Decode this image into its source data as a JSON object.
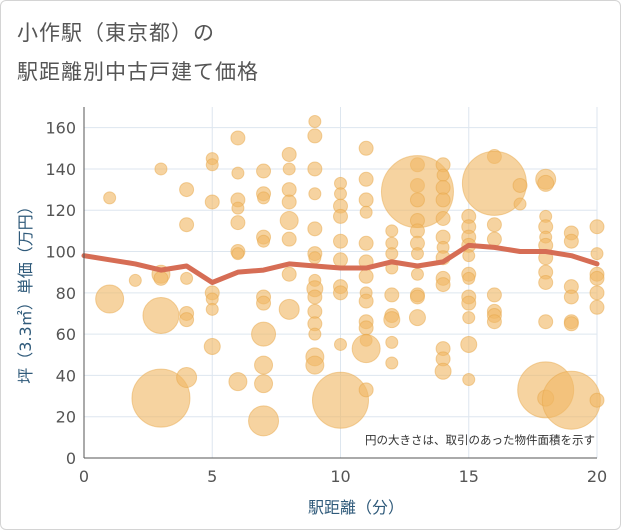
{
  "title": {
    "line1": "小作駅（東京都）の",
    "line2": "駅距離別中古戸建て価格"
  },
  "note": "円の大きさは、取引のあった物件面積を示す",
  "colors": {
    "bubble": "#f0b866",
    "bubble_stroke": "#e7a84a",
    "line": "#d66d55",
    "grid": "#dde6ef",
    "axis": "#555555"
  },
  "chart_data": {
    "type": "scatter",
    "xlabel": "駅距離（分）",
    "ylabel": "坪（3.3㎡）単価（万円）",
    "xlim": [
      0,
      20
    ],
    "ylim": [
      0,
      170
    ],
    "xticks": [
      0,
      5,
      10,
      15,
      20
    ],
    "yticks": [
      0,
      20,
      40,
      60,
      80,
      100,
      120,
      140,
      160
    ],
    "grid": true,
    "bubbles": [
      {
        "x": 1,
        "y": 77,
        "s": 14
      },
      {
        "x": 1,
        "y": 126,
        "s": 6
      },
      {
        "x": 2,
        "y": 86,
        "s": 6
      },
      {
        "x": 3,
        "y": 140,
        "s": 6
      },
      {
        "x": 3,
        "y": 89,
        "s": 9
      },
      {
        "x": 3,
        "y": 87,
        "s": 7
      },
      {
        "x": 3,
        "y": 69,
        "s": 18
      },
      {
        "x": 3,
        "y": 29,
        "s": 29
      },
      {
        "x": 4,
        "y": 130,
        "s": 7
      },
      {
        "x": 4,
        "y": 113,
        "s": 7
      },
      {
        "x": 4,
        "y": 87,
        "s": 6
      },
      {
        "x": 4,
        "y": 70,
        "s": 7
      },
      {
        "x": 4,
        "y": 67,
        "s": 7
      },
      {
        "x": 4,
        "y": 39,
        "s": 10
      },
      {
        "x": 5,
        "y": 145,
        "s": 6
      },
      {
        "x": 5,
        "y": 142,
        "s": 6
      },
      {
        "x": 5,
        "y": 124,
        "s": 7
      },
      {
        "x": 5,
        "y": 80,
        "s": 7
      },
      {
        "x": 5,
        "y": 77,
        "s": 6
      },
      {
        "x": 5,
        "y": 72,
        "s": 6
      },
      {
        "x": 5,
        "y": 54,
        "s": 8
      },
      {
        "x": 6,
        "y": 155,
        "s": 7
      },
      {
        "x": 6,
        "y": 138,
        "s": 6
      },
      {
        "x": 6,
        "y": 125,
        "s": 7
      },
      {
        "x": 6,
        "y": 121,
        "s": 6
      },
      {
        "x": 6,
        "y": 114,
        "s": 7
      },
      {
        "x": 6,
        "y": 100,
        "s": 7
      },
      {
        "x": 6,
        "y": 99,
        "s": 6
      },
      {
        "x": 6,
        "y": 37,
        "s": 9
      },
      {
        "x": 7,
        "y": 139,
        "s": 7
      },
      {
        "x": 7,
        "y": 128,
        "s": 7
      },
      {
        "x": 7,
        "y": 126,
        "s": 6
      },
      {
        "x": 7,
        "y": 107,
        "s": 7
      },
      {
        "x": 7,
        "y": 105,
        "s": 6
      },
      {
        "x": 7,
        "y": 78,
        "s": 7
      },
      {
        "x": 7,
        "y": 75,
        "s": 7
      },
      {
        "x": 7,
        "y": 60,
        "s": 12
      },
      {
        "x": 7,
        "y": 45,
        "s": 9
      },
      {
        "x": 7,
        "y": 36,
        "s": 9
      },
      {
        "x": 7,
        "y": 18,
        "s": 15
      },
      {
        "x": 8,
        "y": 147,
        "s": 7
      },
      {
        "x": 8,
        "y": 140,
        "s": 6
      },
      {
        "x": 8,
        "y": 130,
        "s": 7
      },
      {
        "x": 8,
        "y": 124,
        "s": 7
      },
      {
        "x": 8,
        "y": 115,
        "s": 9
      },
      {
        "x": 8,
        "y": 106,
        "s": 7
      },
      {
        "x": 8,
        "y": 89,
        "s": 7
      },
      {
        "x": 8,
        "y": 72,
        "s": 10
      },
      {
        "x": 9,
        "y": 163,
        "s": 6
      },
      {
        "x": 9,
        "y": 156,
        "s": 7
      },
      {
        "x": 9,
        "y": 140,
        "s": 7
      },
      {
        "x": 9,
        "y": 128,
        "s": 6
      },
      {
        "x": 9,
        "y": 111,
        "s": 7
      },
      {
        "x": 9,
        "y": 99,
        "s": 7
      },
      {
        "x": 9,
        "y": 97,
        "s": 6
      },
      {
        "x": 9,
        "y": 86,
        "s": 6
      },
      {
        "x": 9,
        "y": 82,
        "s": 8
      },
      {
        "x": 9,
        "y": 78,
        "s": 7
      },
      {
        "x": 9,
        "y": 71,
        "s": 7
      },
      {
        "x": 9,
        "y": 65,
        "s": 7
      },
      {
        "x": 9,
        "y": 60,
        "s": 6
      },
      {
        "x": 9,
        "y": 49,
        "s": 9
      },
      {
        "x": 9,
        "y": 45,
        "s": 9
      },
      {
        "x": 10,
        "y": 133,
        "s": 6
      },
      {
        "x": 10,
        "y": 128,
        "s": 6
      },
      {
        "x": 10,
        "y": 122,
        "s": 7
      },
      {
        "x": 10,
        "y": 117,
        "s": 7
      },
      {
        "x": 10,
        "y": 105,
        "s": 7
      },
      {
        "x": 10,
        "y": 96,
        "s": 7
      },
      {
        "x": 10,
        "y": 83,
        "s": 7
      },
      {
        "x": 10,
        "y": 80,
        "s": 7
      },
      {
        "x": 10,
        "y": 55,
        "s": 6
      },
      {
        "x": 10,
        "y": 28,
        "s": 28
      },
      {
        "x": 11,
        "y": 150,
        "s": 7
      },
      {
        "x": 11,
        "y": 135,
        "s": 7
      },
      {
        "x": 11,
        "y": 125,
        "s": 7
      },
      {
        "x": 11,
        "y": 119,
        "s": 6
      },
      {
        "x": 11,
        "y": 104,
        "s": 7
      },
      {
        "x": 11,
        "y": 95,
        "s": 7
      },
      {
        "x": 11,
        "y": 88,
        "s": 7
      },
      {
        "x": 11,
        "y": 80,
        "s": 6
      },
      {
        "x": 11,
        "y": 76,
        "s": 7
      },
      {
        "x": 11,
        "y": 66,
        "s": 7
      },
      {
        "x": 11,
        "y": 63,
        "s": 7
      },
      {
        "x": 11,
        "y": 57,
        "s": 6
      },
      {
        "x": 11,
        "y": 53,
        "s": 14
      },
      {
        "x": 11,
        "y": 33,
        "s": 7
      },
      {
        "x": 12,
        "y": 110,
        "s": 6
      },
      {
        "x": 12,
        "y": 104,
        "s": 6
      },
      {
        "x": 12,
        "y": 99,
        "s": 6
      },
      {
        "x": 12,
        "y": 92,
        "s": 6
      },
      {
        "x": 12,
        "y": 79,
        "s": 7
      },
      {
        "x": 12,
        "y": 69,
        "s": 7
      },
      {
        "x": 12,
        "y": 67,
        "s": 8
      },
      {
        "x": 12,
        "y": 56,
        "s": 6
      },
      {
        "x": 12,
        "y": 46,
        "s": 6
      },
      {
        "x": 13,
        "y": 142,
        "s": 7
      },
      {
        "x": 13,
        "y": 132,
        "s": 7
      },
      {
        "x": 13,
        "y": 129,
        "s": 36
      },
      {
        "x": 13,
        "y": 125,
        "s": 7
      },
      {
        "x": 13,
        "y": 115,
        "s": 7
      },
      {
        "x": 13,
        "y": 110,
        "s": 7
      },
      {
        "x": 13,
        "y": 104,
        "s": 7
      },
      {
        "x": 13,
        "y": 99,
        "s": 6
      },
      {
        "x": 13,
        "y": 89,
        "s": 6
      },
      {
        "x": 13,
        "y": 79,
        "s": 7
      },
      {
        "x": 13,
        "y": 78,
        "s": 7
      },
      {
        "x": 13,
        "y": 68,
        "s": 8
      },
      {
        "x": 14,
        "y": 142,
        "s": 7
      },
      {
        "x": 14,
        "y": 137,
        "s": 6
      },
      {
        "x": 14,
        "y": 131,
        "s": 7
      },
      {
        "x": 14,
        "y": 125,
        "s": 7
      },
      {
        "x": 14,
        "y": 116,
        "s": 7
      },
      {
        "x": 14,
        "y": 107,
        "s": 7
      },
      {
        "x": 14,
        "y": 102,
        "s": 6
      },
      {
        "x": 14,
        "y": 97,
        "s": 7
      },
      {
        "x": 14,
        "y": 87,
        "s": 7
      },
      {
        "x": 14,
        "y": 84,
        "s": 7
      },
      {
        "x": 14,
        "y": 53,
        "s": 7
      },
      {
        "x": 14,
        "y": 48,
        "s": 7
      },
      {
        "x": 14,
        "y": 42,
        "s": 8
      },
      {
        "x": 15,
        "y": 117,
        "s": 7
      },
      {
        "x": 15,
        "y": 112,
        "s": 7
      },
      {
        "x": 15,
        "y": 107,
        "s": 7
      },
      {
        "x": 15,
        "y": 103,
        "s": 7
      },
      {
        "x": 15,
        "y": 98,
        "s": 6
      },
      {
        "x": 15,
        "y": 89,
        "s": 7
      },
      {
        "x": 15,
        "y": 87,
        "s": 6
      },
      {
        "x": 15,
        "y": 78,
        "s": 7
      },
      {
        "x": 15,
        "y": 75,
        "s": 7
      },
      {
        "x": 15,
        "y": 68,
        "s": 6
      },
      {
        "x": 15,
        "y": 55,
        "s": 8
      },
      {
        "x": 15,
        "y": 38,
        "s": 6
      },
      {
        "x": 16,
        "y": 146,
        "s": 7
      },
      {
        "x": 16,
        "y": 133,
        "s": 32
      },
      {
        "x": 16,
        "y": 113,
        "s": 7
      },
      {
        "x": 16,
        "y": 106,
        "s": 7
      },
      {
        "x": 16,
        "y": 79,
        "s": 7
      },
      {
        "x": 16,
        "y": 71,
        "s": 7
      },
      {
        "x": 16,
        "y": 69,
        "s": 7
      },
      {
        "x": 16,
        "y": 66,
        "s": 7
      },
      {
        "x": 17,
        "y": 132,
        "s": 7
      },
      {
        "x": 17,
        "y": 123,
        "s": 6
      },
      {
        "x": 18,
        "y": 135,
        "s": 10
      },
      {
        "x": 18,
        "y": 133,
        "s": 8
      },
      {
        "x": 18,
        "y": 117,
        "s": 6
      },
      {
        "x": 18,
        "y": 112,
        "s": 7
      },
      {
        "x": 18,
        "y": 107,
        "s": 6
      },
      {
        "x": 18,
        "y": 103,
        "s": 7
      },
      {
        "x": 18,
        "y": 97,
        "s": 7
      },
      {
        "x": 18,
        "y": 90,
        "s": 7
      },
      {
        "x": 18,
        "y": 85,
        "s": 7
      },
      {
        "x": 18,
        "y": 66,
        "s": 7
      },
      {
        "x": 18,
        "y": 33,
        "s": 28
      },
      {
        "x": 18,
        "y": 29,
        "s": 8
      },
      {
        "x": 19,
        "y": 109,
        "s": 7
      },
      {
        "x": 19,
        "y": 105,
        "s": 7
      },
      {
        "x": 19,
        "y": 83,
        "s": 7
      },
      {
        "x": 19,
        "y": 78,
        "s": 7
      },
      {
        "x": 19,
        "y": 66,
        "s": 7
      },
      {
        "x": 19,
        "y": 65,
        "s": 7
      },
      {
        "x": 19,
        "y": 28,
        "s": 29
      },
      {
        "x": 20,
        "y": 112,
        "s": 7
      },
      {
        "x": 20,
        "y": 99,
        "s": 6
      },
      {
        "x": 20,
        "y": 89,
        "s": 7
      },
      {
        "x": 20,
        "y": 87,
        "s": 7
      },
      {
        "x": 20,
        "y": 80,
        "s": 7
      },
      {
        "x": 20,
        "y": 73,
        "s": 7
      },
      {
        "x": 20,
        "y": 28,
        "s": 7
      }
    ],
    "trend": [
      {
        "x": 0,
        "y": 98
      },
      {
        "x": 1,
        "y": 96
      },
      {
        "x": 2,
        "y": 94
      },
      {
        "x": 3,
        "y": 91
      },
      {
        "x": 4,
        "y": 93
      },
      {
        "x": 5,
        "y": 85
      },
      {
        "x": 6,
        "y": 90
      },
      {
        "x": 7,
        "y": 91
      },
      {
        "x": 8,
        "y": 94
      },
      {
        "x": 9,
        "y": 93
      },
      {
        "x": 10,
        "y": 92
      },
      {
        "x": 11,
        "y": 92
      },
      {
        "x": 12,
        "y": 95
      },
      {
        "x": 13,
        "y": 93
      },
      {
        "x": 14,
        "y": 95
      },
      {
        "x": 15,
        "y": 103
      },
      {
        "x": 16,
        "y": 102
      },
      {
        "x": 17,
        "y": 100
      },
      {
        "x": 18,
        "y": 100
      },
      {
        "x": 19,
        "y": 98
      },
      {
        "x": 20,
        "y": 94
      }
    ]
  }
}
